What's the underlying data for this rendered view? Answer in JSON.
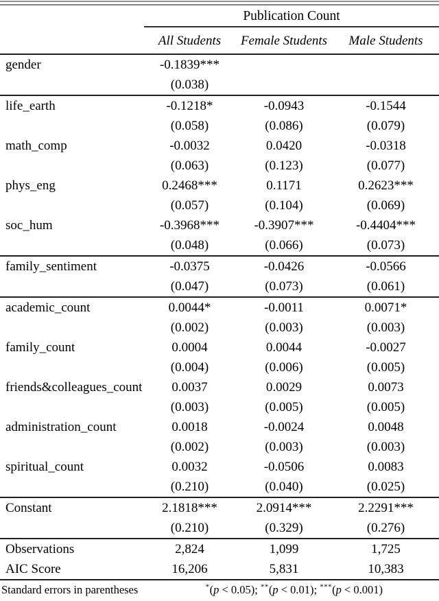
{
  "table": {
    "title": "Publication Count",
    "columns": [
      "All Students",
      "Female Students",
      "Male Students"
    ],
    "rows": [
      {
        "label": "gender",
        "coef": [
          "-0.1839***",
          "",
          ""
        ],
        "se": [
          "(0.038)",
          "",
          ""
        ]
      },
      {
        "label": "life_earth",
        "coef": [
          "-0.1218*",
          "-0.0943",
          "-0.1544"
        ],
        "se": [
          "(0.058)",
          "(0.086)",
          "(0.079)"
        ]
      },
      {
        "label": "math_comp",
        "coef": [
          "-0.0032",
          "0.0420",
          "-0.0318"
        ],
        "se": [
          "(0.063)",
          "(0.123)",
          "(0.077)"
        ]
      },
      {
        "label": "phys_eng",
        "coef": [
          "0.2468***",
          "0.1171",
          "0.2623***"
        ],
        "se": [
          "(0.057)",
          "(0.104)",
          "(0.069)"
        ]
      },
      {
        "label": "soc_hum",
        "coef": [
          "-0.3968***",
          "-0.3907***",
          "-0.4404***"
        ],
        "se": [
          "(0.048)",
          "(0.066)",
          "(0.073)"
        ]
      },
      {
        "label": "family_sentiment",
        "coef": [
          "-0.0375",
          "-0.0426",
          "-0.0566"
        ],
        "se": [
          "(0.047)",
          "(0.073)",
          "(0.061)"
        ]
      },
      {
        "label": "academic_count",
        "coef": [
          "0.0044*",
          "-0.0011",
          "0.0071*"
        ],
        "se": [
          "(0.002)",
          "(0.003)",
          "(0.003)"
        ]
      },
      {
        "label": "family_count",
        "coef": [
          "0.0004",
          "0.0044",
          "-0.0027"
        ],
        "se": [
          "(0.004)",
          "(0.006)",
          "(0.005)"
        ]
      },
      {
        "label": "friends&colleagues_count",
        "coef": [
          "0.0037",
          "0.0029",
          "0.0073"
        ],
        "se": [
          "(0.003)",
          "(0.005)",
          "(0.005)"
        ]
      },
      {
        "label": "administration_count",
        "coef": [
          "0.0018",
          "-0.0024",
          "0.0048"
        ],
        "se": [
          "(0.002)",
          "(0.003)",
          "(0.003)"
        ]
      },
      {
        "label": "spiritual_count",
        "coef": [
          "0.0032",
          "-0.0506",
          "0.0083"
        ],
        "se": [
          "(0.210)",
          "(0.040)",
          "(0.025)"
        ]
      },
      {
        "label": "Constant",
        "coef": [
          "2.1818***",
          "2.0914***",
          "2.2291***"
        ],
        "se": [
          "(0.210)",
          "(0.329)",
          "(0.276)"
        ]
      }
    ],
    "stats": [
      {
        "label": "Observations",
        "values": [
          "2,824",
          "1,099",
          "1,725"
        ]
      },
      {
        "label": "AIC Score",
        "values": [
          "16,206",
          "5,831",
          "10,383"
        ]
      }
    ],
    "footer": {
      "note": "Standard errors in parentheses",
      "legend_items": [
        {
          "stars": "*",
          "open": "(",
          "pvar": "p",
          "cond": " < 0.05)",
          "sep": "; "
        },
        {
          "stars": "**",
          "open": "(",
          "pvar": "p",
          "cond": " < 0.01)",
          "sep": "; "
        },
        {
          "stars": "***",
          "open": "(",
          "pvar": "p",
          "cond": " < 0.001)",
          "sep": ""
        }
      ]
    }
  }
}
